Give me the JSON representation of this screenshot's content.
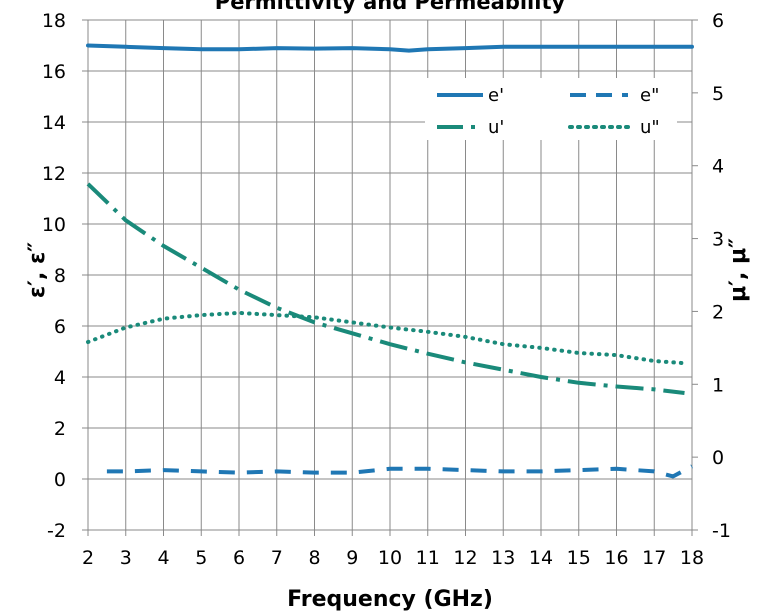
{
  "chart_data": {
    "type": "line",
    "title": "Permittivity and Permeability",
    "xlabel": "Frequency (GHz)",
    "ylabel_left": "ε′, ε″",
    "ylabel_right": "μ′, μ″",
    "x_ticks": [
      2,
      3,
      4,
      5,
      6,
      7,
      8,
      9,
      10,
      11,
      12,
      13,
      14,
      15,
      16,
      17,
      18
    ],
    "y_left_ticks": [
      -2,
      0,
      2,
      4,
      6,
      8,
      10,
      12,
      14,
      16,
      18
    ],
    "y_right_ticks": [
      -1,
      0,
      1,
      2,
      3,
      4,
      5,
      6
    ],
    "xlim": [
      2,
      18
    ],
    "ylim_left": [
      -2,
      18
    ],
    "ylim_right": [
      -1,
      6
    ],
    "grid": true,
    "legend_position": "top-right",
    "series": [
      {
        "name": "e'",
        "axis": "left",
        "style": "solid",
        "color": "#1f77b4",
        "x": [
          2,
          3,
          4,
          5,
          6,
          7,
          8,
          9,
          10,
          10.5,
          11,
          12,
          13,
          14,
          15,
          16,
          17,
          18
        ],
        "y": [
          17.0,
          16.95,
          16.9,
          16.85,
          16.85,
          16.9,
          16.88,
          16.9,
          16.85,
          16.8,
          16.85,
          16.9,
          16.95,
          16.95,
          16.95,
          16.95,
          16.95,
          16.95
        ]
      },
      {
        "name": "e\"",
        "axis": "left",
        "style": "dash",
        "color": "#1f77b4",
        "x": [
          2.5,
          3,
          4,
          5,
          6,
          7,
          8,
          9,
          10,
          11,
          12,
          13,
          14,
          15,
          16,
          17,
          17.5,
          18
        ],
        "y": [
          0.3,
          0.3,
          0.35,
          0.3,
          0.25,
          0.3,
          0.25,
          0.25,
          0.4,
          0.4,
          0.35,
          0.3,
          0.3,
          0.35,
          0.4,
          0.3,
          0.1,
          0.5
        ]
      },
      {
        "name": "u'",
        "axis": "right",
        "style": "longdash",
        "color": "#1a8a7a",
        "x": [
          2,
          3,
          4,
          5,
          6,
          7,
          8,
          9,
          10,
          11,
          12,
          13,
          14,
          15,
          16,
          17,
          17.8
        ],
        "y": [
          3.75,
          3.25,
          2.9,
          2.6,
          2.3,
          2.05,
          1.85,
          1.7,
          1.55,
          1.42,
          1.3,
          1.2,
          1.1,
          1.02,
          0.97,
          0.93,
          0.88
        ]
      },
      {
        "name": "u\"",
        "axis": "right",
        "style": "dot",
        "color": "#1a8a7a",
        "x": [
          2,
          3,
          4,
          5,
          6,
          7,
          8,
          9,
          10,
          11,
          12,
          13,
          14,
          15,
          16,
          17,
          17.8
        ],
        "y": [
          1.58,
          1.78,
          1.9,
          1.95,
          1.98,
          1.95,
          1.92,
          1.85,
          1.78,
          1.72,
          1.65,
          1.55,
          1.5,
          1.43,
          1.4,
          1.32,
          1.29
        ]
      }
    ]
  }
}
